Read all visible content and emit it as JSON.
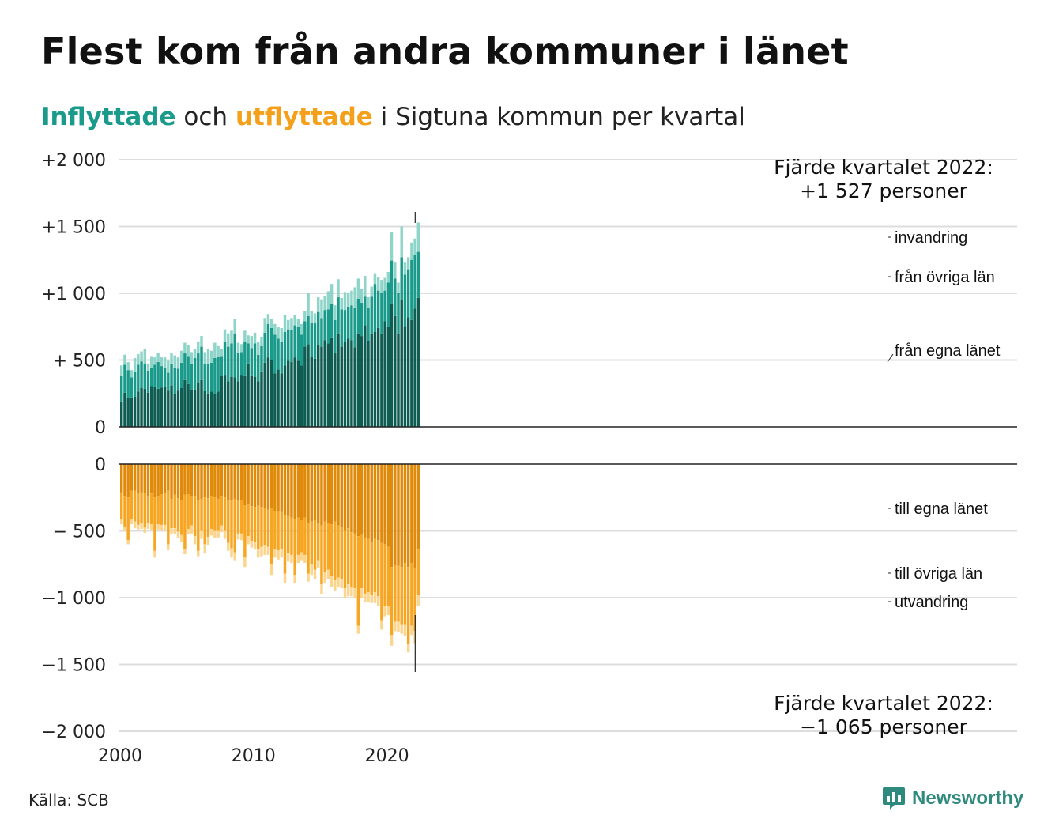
{
  "title": "Flest kom från andra kommuner i länet",
  "subtitle": {
    "in_word": "Inflyttade",
    "mid": " och ",
    "out_word": "utflyttade",
    "rest": " i Sigtuna kommun per kvartal"
  },
  "colors": {
    "in_egna": "#0e5c52",
    "in_ovriga": "#1a9a8a",
    "in_invandring": "#8fd4c9",
    "out_egna": "#e08a0c",
    "out_ovriga": "#f7a623",
    "out_utvandring": "#fbd58e",
    "grid": "#dddddd",
    "text": "#111111"
  },
  "source": "Källa: SCB",
  "logo": {
    "text": "Newsworthy",
    "icon": "bar-chart-bubble-icon"
  },
  "chart_data": {
    "type": "bar",
    "stacked": true,
    "x_start": "2000 Q1",
    "x_end": "2022 Q4",
    "x_ticks": [
      "2000",
      "2010",
      "2020"
    ],
    "y_ticks": [
      {
        "value": 2000,
        "label": "+2 000"
      },
      {
        "value": 1500,
        "label": "+1 500"
      },
      {
        "value": 1000,
        "label": "+1 000"
      },
      {
        "value": 500,
        "label": "+  500"
      },
      {
        "value": 0,
        "label": "0"
      }
    ],
    "y_ticks_lower": [
      {
        "value": 0,
        "label": "0"
      },
      {
        "value": -500,
        "label": "−  500"
      },
      {
        "value": -1000,
        "label": "−1 000"
      },
      {
        "value": -1500,
        "label": "−1 500"
      },
      {
        "value": -2000,
        "label": "−2 000"
      }
    ],
    "ylim_upper": [
      0,
      2000
    ],
    "ylim_lower": [
      -2000,
      0
    ],
    "grid": true,
    "annotation_top": {
      "line1": "Fjärde kvartalet 2022:",
      "line2": "+1 527 personer"
    },
    "annotation_bottom": {
      "line1": "Fjärde kvartalet 2022:",
      "line2": "−1 065 personer"
    },
    "in_segment_labels": [
      "invandring",
      "från övriga län",
      "från egna länet"
    ],
    "out_segment_labels": [
      "till egna länet",
      "till övriga län",
      "utvandring"
    ],
    "inflyttade": {
      "fran_egna_lanet": [
        190,
        255,
        215,
        220,
        225,
        265,
        290,
        285,
        255,
        305,
        300,
        285,
        295,
        300,
        275,
        310,
        245,
        275,
        290,
        350,
        320,
        280,
        280,
        330,
        350,
        270,
        250,
        265,
        245,
        265,
        380,
        390,
        340,
        375,
        370,
        340,
        390,
        385,
        475,
        385,
        375,
        340,
        415,
        480,
        520,
        500,
        400,
        430,
        400,
        460,
        495,
        485,
        520,
        495,
        460,
        600,
        620,
        525,
        510,
        610,
        600,
        650,
        625,
        670,
        550,
        700,
        600,
        635,
        660,
        650,
        595,
        700,
        680,
        760,
        645,
        700,
        710,
        740,
        700,
        790,
        750,
        925,
        830,
        695,
        950,
        755,
        820,
        800,
        885,
        965
      ],
      "fran_ovriga_lan": [
        190,
        210,
        210,
        150,
        190,
        200,
        200,
        190,
        165,
        140,
        165,
        200,
        160,
        140,
        130,
        160,
        200,
        160,
        190,
        200,
        210,
        190,
        235,
        220,
        250,
        200,
        225,
        215,
        270,
        260,
        150,
        250,
        260,
        250,
        330,
        215,
        170,
        250,
        150,
        205,
        250,
        200,
        190,
        225,
        250,
        240,
        290,
        230,
        240,
        250,
        235,
        240,
        240,
        255,
        230,
        190,
        210,
        250,
        265,
        250,
        215,
        225,
        255,
        250,
        250,
        270,
        280,
        240,
        240,
        260,
        295,
        260,
        250,
        215,
        250,
        275,
        360,
        280,
        300,
        230,
        330,
        320,
        280,
        305,
        320,
        385,
        360,
        450,
        405,
        345
      ],
      "invandring": [
        80,
        75,
        60,
        55,
        100,
        80,
        75,
        105,
        55,
        85,
        55,
        70,
        65,
        80,
        90,
        80,
        90,
        85,
        90,
        80,
        80,
        90,
        70,
        90,
        80,
        90,
        110,
        90,
        115,
        80,
        50,
        90,
        100,
        95,
        110,
        75,
        60,
        85,
        60,
        90,
        80,
        100,
        70,
        110,
        75,
        70,
        80,
        85,
        100,
        130,
        70,
        90,
        75,
        60,
        80,
        80,
        170,
        95,
        75,
        110,
        140,
        105,
        135,
        150,
        110,
        135,
        85,
        135,
        105,
        110,
        155,
        150,
        100,
        155,
        75,
        75,
        80,
        100,
        100,
        95,
        80,
        210,
        120,
        80,
        230,
        90,
        90,
        130,
        120,
        220
      ]
    },
    "utflyttade": {
      "till_egna_lanet": [
        -210,
        -240,
        -250,
        -200,
        -200,
        -215,
        -210,
        -215,
        -245,
        -220,
        -250,
        -240,
        -225,
        -215,
        -200,
        -260,
        -230,
        -255,
        -270,
        -230,
        -225,
        -240,
        -240,
        -270,
        -260,
        -250,
        -255,
        -245,
        -250,
        -260,
        -240,
        -250,
        -270,
        -270,
        -260,
        -270,
        -270,
        -310,
        -300,
        -315,
        -320,
        -310,
        -320,
        -330,
        -340,
        -330,
        -350,
        -355,
        -360,
        -380,
        -390,
        -400,
        -410,
        -400,
        -420,
        -400,
        -440,
        -430,
        -420,
        -440,
        -460,
        -430,
        -440,
        -450,
        -430,
        -460,
        -470,
        -500,
        -480,
        -510,
        -520,
        -540,
        -530,
        -550,
        -560,
        -580,
        -560,
        -570,
        -590,
        -600,
        -620,
        -770,
        -760,
        -760,
        -770,
        -740,
        -770,
        -740,
        -780,
        -640
      ],
      "till_ovriga_lan": [
        -200,
        -230,
        -320,
        -210,
        -230,
        -240,
        -230,
        -260,
        -200,
        -230,
        -400,
        -210,
        -230,
        -240,
        -400,
        -220,
        -250,
        -250,
        -260,
        -410,
        -260,
        -220,
        -300,
        -380,
        -240,
        -350,
        -290,
        -240,
        -250,
        -240,
        -220,
        -250,
        -320,
        -360,
        -400,
        -250,
        -250,
        -390,
        -240,
        -260,
        -260,
        -330,
        -300,
        -280,
        -280,
        -420,
        -290,
        -290,
        -280,
        -440,
        -280,
        -280,
        -420,
        -280,
        -240,
        -280,
        -380,
        -320,
        -370,
        -280,
        -440,
        -380,
        -350,
        -390,
        -440,
        -390,
        -390,
        -430,
        -420,
        -410,
        -410,
        -670,
        -400,
        -420,
        -400,
        -400,
        -400,
        -420,
        -580,
        -460,
        -440,
        -510,
        -420,
        -420,
        -430,
        -460,
        -580,
        -470,
        -470,
        -340
      ],
      "utvandring": [
        -40,
        -35,
        -30,
        -40,
        -50,
        -35,
        -45,
        -40,
        -40,
        -45,
        -50,
        -40,
        -45,
        -45,
        -45,
        -40,
        -45,
        -50,
        -50,
        -35,
        -40,
        -60,
        -60,
        -40,
        -60,
        -70,
        -60,
        -50,
        -50,
        -50,
        -50,
        -60,
        -60,
        -70,
        -60,
        -45,
        -50,
        -70,
        -60,
        -50,
        -60,
        -60,
        -70,
        -70,
        -60,
        -80,
        -60,
        -70,
        -60,
        -70,
        -60,
        -60,
        -60,
        -60,
        -60,
        -60,
        -60,
        -80,
        -70,
        -60,
        -70,
        -80,
        -70,
        -80,
        -80,
        -70,
        -70,
        -70,
        -90,
        -70,
        -70,
        -60,
        -70,
        -60,
        -70,
        -60,
        -80,
        -70,
        -70,
        -80,
        -70,
        -80,
        -70,
        -80,
        -70,
        -90,
        -60,
        -70,
        -90,
        -85
      ]
    }
  }
}
